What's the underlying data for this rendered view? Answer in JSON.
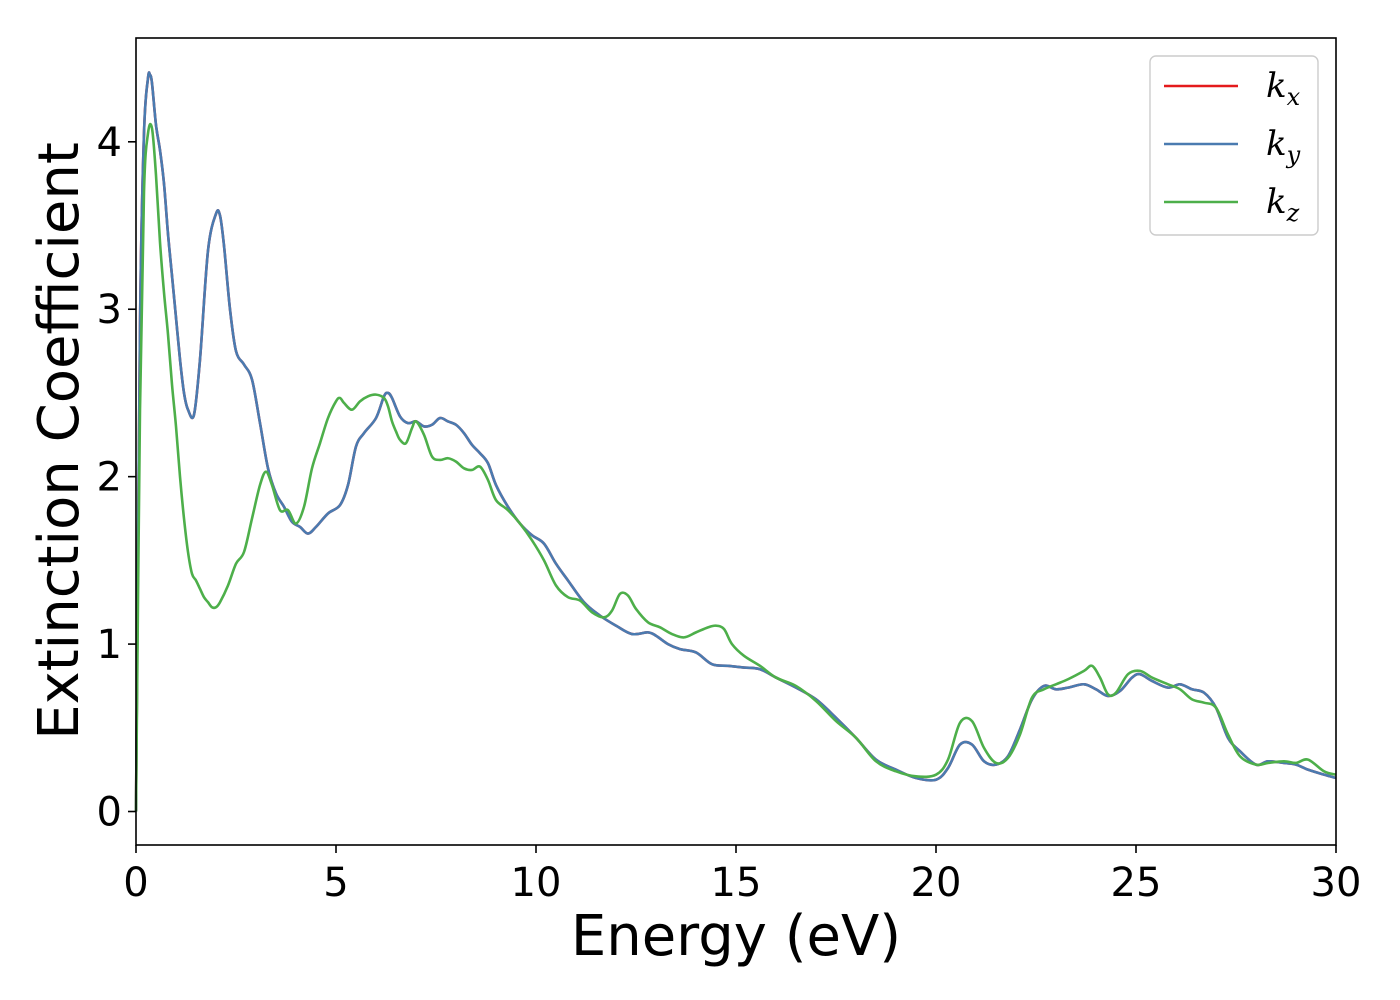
{
  "chart_data": {
    "type": "line",
    "title": "",
    "xlabel": "Energy (eV)",
    "ylabel": "Extinction Coefficient",
    "xlim": [
      0,
      30
    ],
    "ylim": [
      -0.2,
      4.62
    ],
    "xticks": [
      0,
      5,
      10,
      15,
      20,
      25,
      30
    ],
    "yticks": [
      0,
      1,
      2,
      3,
      4
    ],
    "grid": false,
    "legend_position": "top-right",
    "series": [
      {
        "name": "k_x",
        "legend_base": "k",
        "legend_sub": "x",
        "color": "#e41a1c",
        "x": [
          0,
          0.1,
          0.2,
          0.3,
          0.35,
          0.4,
          0.5,
          0.6,
          0.7,
          0.8,
          0.9,
          1.0,
          1.1,
          1.2,
          1.3,
          1.45,
          1.6,
          1.8,
          2.0,
          2.1,
          2.2,
          2.35,
          2.5,
          2.7,
          2.9,
          3.1,
          3.3,
          3.5,
          3.7,
          3.9,
          4.1,
          4.3,
          4.5,
          4.8,
          5.1,
          5.3,
          5.5,
          5.7,
          6.0,
          6.2,
          6.3,
          6.4,
          6.6,
          6.8,
          7.0,
          7.2,
          7.4,
          7.6,
          7.8,
          8.0,
          8.2,
          8.4,
          8.6,
          8.8,
          9.0,
          9.3,
          9.6,
          9.9,
          10.2,
          10.5,
          10.8,
          11.2,
          11.6,
          12.0,
          12.4,
          12.8,
          13.0,
          13.3,
          13.6,
          14.0,
          14.4,
          14.8,
          15.2,
          15.6,
          16.0,
          16.5,
          17.0,
          17.5,
          18.0,
          18.5,
          19.0,
          19.5,
          20.0,
          20.3,
          20.6,
          20.9,
          21.2,
          21.5,
          21.8,
          22.1,
          22.4,
          22.7,
          23.0,
          23.3,
          23.7,
          24.0,
          24.3,
          24.6,
          24.9,
          25.1,
          25.4,
          25.8,
          26.1,
          26.4,
          26.7,
          27.0,
          27.3,
          27.6,
          28.0,
          28.3,
          28.7,
          29.0,
          29.3,
          29.7,
          30.0
        ],
        "y": [
          0.0,
          2.9,
          4.05,
          4.38,
          4.4,
          4.35,
          4.1,
          3.95,
          3.75,
          3.45,
          3.2,
          2.95,
          2.7,
          2.5,
          2.4,
          2.37,
          2.7,
          3.35,
          3.57,
          3.56,
          3.38,
          3.0,
          2.75,
          2.67,
          2.58,
          2.32,
          2.05,
          1.9,
          1.82,
          1.73,
          1.7,
          1.66,
          1.7,
          1.78,
          1.83,
          1.95,
          2.18,
          2.26,
          2.35,
          2.48,
          2.5,
          2.47,
          2.36,
          2.32,
          2.33,
          2.3,
          2.31,
          2.35,
          2.33,
          2.31,
          2.26,
          2.19,
          2.14,
          2.08,
          1.95,
          1.82,
          1.72,
          1.65,
          1.6,
          1.48,
          1.38,
          1.25,
          1.17,
          1.11,
          1.06,
          1.07,
          1.05,
          1.0,
          0.97,
          0.95,
          0.88,
          0.87,
          0.86,
          0.85,
          0.8,
          0.74,
          0.67,
          0.56,
          0.44,
          0.31,
          0.25,
          0.2,
          0.19,
          0.26,
          0.4,
          0.4,
          0.3,
          0.28,
          0.33,
          0.49,
          0.67,
          0.75,
          0.73,
          0.74,
          0.76,
          0.73,
          0.69,
          0.72,
          0.8,
          0.82,
          0.78,
          0.74,
          0.76,
          0.73,
          0.71,
          0.62,
          0.44,
          0.36,
          0.28,
          0.3,
          0.29,
          0.28,
          0.25,
          0.22,
          0.2
        ]
      },
      {
        "name": "k_y",
        "legend_base": "k",
        "legend_sub": "y",
        "color": "#4a7bb0",
        "x": [
          0,
          0.1,
          0.2,
          0.3,
          0.35,
          0.4,
          0.5,
          0.6,
          0.7,
          0.8,
          0.9,
          1.0,
          1.1,
          1.2,
          1.3,
          1.45,
          1.6,
          1.8,
          2.0,
          2.1,
          2.2,
          2.35,
          2.5,
          2.7,
          2.9,
          3.1,
          3.3,
          3.5,
          3.7,
          3.9,
          4.1,
          4.3,
          4.5,
          4.8,
          5.1,
          5.3,
          5.5,
          5.7,
          6.0,
          6.2,
          6.3,
          6.4,
          6.6,
          6.8,
          7.0,
          7.2,
          7.4,
          7.6,
          7.8,
          8.0,
          8.2,
          8.4,
          8.6,
          8.8,
          9.0,
          9.3,
          9.6,
          9.9,
          10.2,
          10.5,
          10.8,
          11.2,
          11.6,
          12.0,
          12.4,
          12.8,
          13.0,
          13.3,
          13.6,
          14.0,
          14.4,
          14.8,
          15.2,
          15.6,
          16.0,
          16.5,
          17.0,
          17.5,
          18.0,
          18.5,
          19.0,
          19.5,
          20.0,
          20.3,
          20.6,
          20.9,
          21.2,
          21.5,
          21.8,
          22.1,
          22.4,
          22.7,
          23.0,
          23.3,
          23.7,
          24.0,
          24.3,
          24.6,
          24.9,
          25.1,
          25.4,
          25.8,
          26.1,
          26.4,
          26.7,
          27.0,
          27.3,
          27.6,
          28.0,
          28.3,
          28.7,
          29.0,
          29.3,
          29.7,
          30.0
        ],
        "y": [
          0.0,
          2.9,
          4.05,
          4.38,
          4.4,
          4.35,
          4.1,
          3.95,
          3.75,
          3.45,
          3.2,
          2.95,
          2.7,
          2.5,
          2.4,
          2.37,
          2.7,
          3.35,
          3.57,
          3.56,
          3.38,
          3.0,
          2.75,
          2.67,
          2.58,
          2.32,
          2.05,
          1.9,
          1.82,
          1.73,
          1.7,
          1.66,
          1.7,
          1.78,
          1.83,
          1.95,
          2.18,
          2.26,
          2.35,
          2.48,
          2.5,
          2.47,
          2.36,
          2.32,
          2.33,
          2.3,
          2.31,
          2.35,
          2.33,
          2.31,
          2.26,
          2.19,
          2.14,
          2.08,
          1.95,
          1.82,
          1.72,
          1.65,
          1.6,
          1.48,
          1.38,
          1.25,
          1.17,
          1.11,
          1.06,
          1.07,
          1.05,
          1.0,
          0.97,
          0.95,
          0.88,
          0.87,
          0.86,
          0.85,
          0.8,
          0.74,
          0.67,
          0.56,
          0.44,
          0.31,
          0.25,
          0.2,
          0.19,
          0.26,
          0.4,
          0.4,
          0.3,
          0.28,
          0.33,
          0.49,
          0.67,
          0.75,
          0.73,
          0.74,
          0.76,
          0.73,
          0.69,
          0.72,
          0.8,
          0.82,
          0.78,
          0.74,
          0.76,
          0.73,
          0.71,
          0.62,
          0.44,
          0.36,
          0.28,
          0.3,
          0.29,
          0.28,
          0.25,
          0.22,
          0.2
        ]
      },
      {
        "name": "k_z",
        "legend_base": "k",
        "legend_sub": "z",
        "color": "#4daf4a",
        "x": [
          0,
          0.1,
          0.2,
          0.3,
          0.4,
          0.5,
          0.6,
          0.7,
          0.8,
          0.9,
          1.0,
          1.1,
          1.2,
          1.3,
          1.4,
          1.5,
          1.6,
          1.7,
          1.8,
          1.9,
          2.0,
          2.1,
          2.3,
          2.5,
          2.7,
          2.9,
          3.1,
          3.25,
          3.4,
          3.6,
          3.8,
          4.0,
          4.2,
          4.4,
          4.6,
          4.8,
          5.0,
          5.1,
          5.2,
          5.4,
          5.6,
          5.8,
          6.0,
          6.2,
          6.3,
          6.4,
          6.5,
          6.6,
          6.75,
          6.9,
          7.0,
          7.2,
          7.4,
          7.6,
          7.8,
          8.0,
          8.2,
          8.4,
          8.6,
          8.8,
          9.0,
          9.3,
          9.6,
          9.9,
          10.2,
          10.5,
          10.8,
          11.1,
          11.4,
          11.7,
          11.9,
          12.1,
          12.3,
          12.5,
          12.8,
          13.1,
          13.4,
          13.7,
          14.0,
          14.3,
          14.5,
          14.7,
          14.9,
          15.2,
          15.6,
          16.0,
          16.5,
          17.0,
          17.5,
          18.0,
          18.5,
          19.0,
          19.5,
          20.0,
          20.3,
          20.6,
          20.9,
          21.2,
          21.5,
          21.8,
          22.1,
          22.4,
          22.7,
          23.0,
          23.3,
          23.7,
          23.9,
          24.1,
          24.3,
          24.5,
          24.8,
          25.1,
          25.4,
          25.8,
          26.1,
          26.4,
          26.7,
          27.0,
          27.3,
          27.6,
          28.0,
          28.3,
          28.7,
          29.0,
          29.3,
          29.7,
          30.0
        ],
        "y": [
          0.0,
          2.4,
          3.7,
          4.05,
          4.08,
          3.8,
          3.4,
          3.1,
          2.85,
          2.55,
          2.3,
          2.0,
          1.75,
          1.55,
          1.42,
          1.38,
          1.33,
          1.28,
          1.25,
          1.22,
          1.22,
          1.25,
          1.35,
          1.48,
          1.55,
          1.75,
          1.95,
          2.03,
          1.95,
          1.8,
          1.8,
          1.72,
          1.82,
          2.05,
          2.2,
          2.35,
          2.45,
          2.47,
          2.44,
          2.4,
          2.45,
          2.48,
          2.49,
          2.47,
          2.42,
          2.33,
          2.27,
          2.22,
          2.2,
          2.29,
          2.33,
          2.25,
          2.12,
          2.1,
          2.11,
          2.09,
          2.05,
          2.04,
          2.06,
          1.98,
          1.86,
          1.8,
          1.72,
          1.62,
          1.5,
          1.35,
          1.28,
          1.26,
          1.19,
          1.16,
          1.2,
          1.3,
          1.29,
          1.21,
          1.13,
          1.1,
          1.06,
          1.04,
          1.07,
          1.1,
          1.11,
          1.09,
          1.0,
          0.93,
          0.87,
          0.8,
          0.75,
          0.66,
          0.54,
          0.44,
          0.3,
          0.24,
          0.21,
          0.22,
          0.31,
          0.53,
          0.54,
          0.38,
          0.29,
          0.32,
          0.46,
          0.68,
          0.73,
          0.76,
          0.79,
          0.84,
          0.87,
          0.8,
          0.7,
          0.71,
          0.82,
          0.84,
          0.8,
          0.76,
          0.73,
          0.67,
          0.65,
          0.62,
          0.46,
          0.33,
          0.28,
          0.29,
          0.3,
          0.29,
          0.31,
          0.24,
          0.22
        ]
      }
    ]
  }
}
